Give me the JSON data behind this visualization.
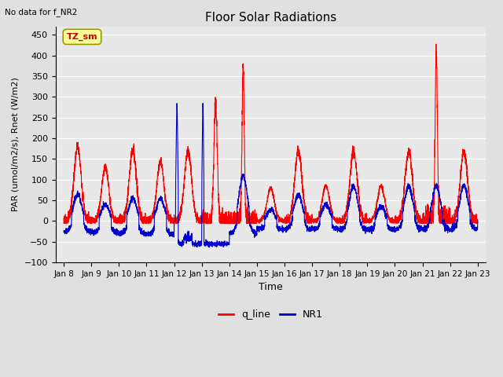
{
  "title": "Floor Solar Radiations",
  "xlabel": "Time",
  "ylabel": "PAR (umol/m2/s), Rnet (W/m2)",
  "top_left_text": "No data for f_NR2",
  "annotation_box": "TZ_sm",
  "ylim": [
    -100,
    470
  ],
  "yticks": [
    -100,
    -50,
    0,
    50,
    100,
    150,
    200,
    250,
    300,
    350,
    400,
    450
  ],
  "xtick_labels": [
    "Jan 8",
    "Jan 9",
    "Jan 10",
    "Jan 11",
    "Jan 12",
    "Jan 13",
    "Jan 14",
    "Jan 15",
    "Jan 16",
    "Jan 17",
    "Jan 18",
    "Jan 19",
    "Jan 20",
    "Jan 21",
    "Jan 22",
    "Jan 23"
  ],
  "legend_entries": [
    "q_line",
    "NR1"
  ],
  "q_line_color": "#ff0000",
  "NR1_color": "#0000cc",
  "bg_color": "#e0e0e0",
  "plot_bg_color": "#e8e8e8",
  "grid_color": "#ffffff",
  "annotation_bg": "#ffff99",
  "annotation_border": "#999900",
  "figsize": [
    6.4,
    4.8
  ],
  "dpi": 100
}
